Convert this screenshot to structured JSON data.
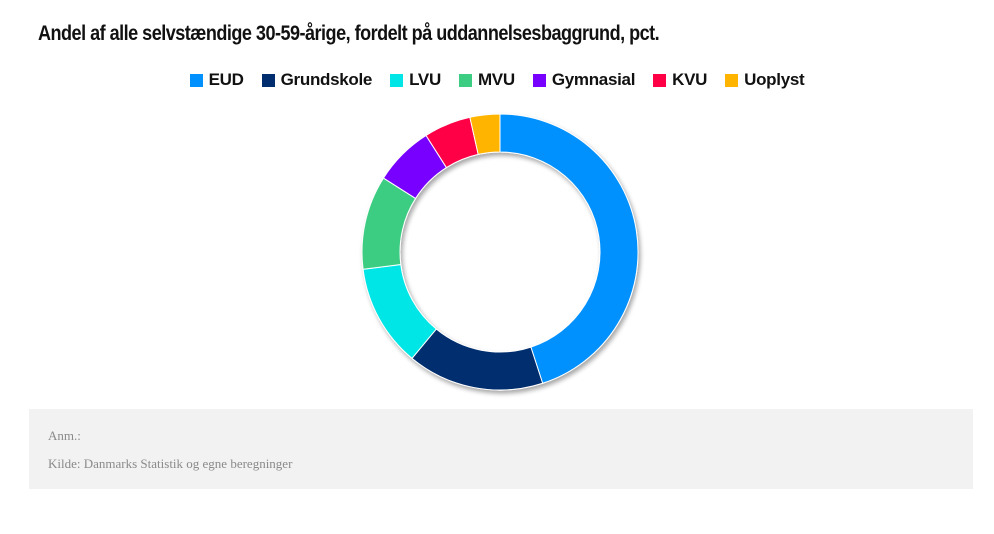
{
  "chart_data": {
    "type": "pie",
    "variant": "donut",
    "title": "Andel af alle selvstændige 30-59-årige, fordelt på uddannelsesbaggrund, pct.",
    "legend_position": "top-center",
    "series": [
      {
        "name": "EUD",
        "value": 45,
        "color": "#0091ff"
      },
      {
        "name": "Grundskole",
        "value": 16,
        "color": "#002d6e"
      },
      {
        "name": "LVU",
        "value": 12,
        "color": "#00e6e6"
      },
      {
        "name": "MVU",
        "value": 11,
        "color": "#3ccd82"
      },
      {
        "name": "Gymnasial",
        "value": 7,
        "color": "#7800ff"
      },
      {
        "name": "KVU",
        "value": 5.5,
        "color": "#ff0046"
      },
      {
        "name": "Uoplyst",
        "value": 3.5,
        "color": "#ffb400"
      }
    ]
  },
  "notes": {
    "anm": "Anm.:",
    "source": "Kilde: Danmarks Statistik og egne beregninger"
  }
}
